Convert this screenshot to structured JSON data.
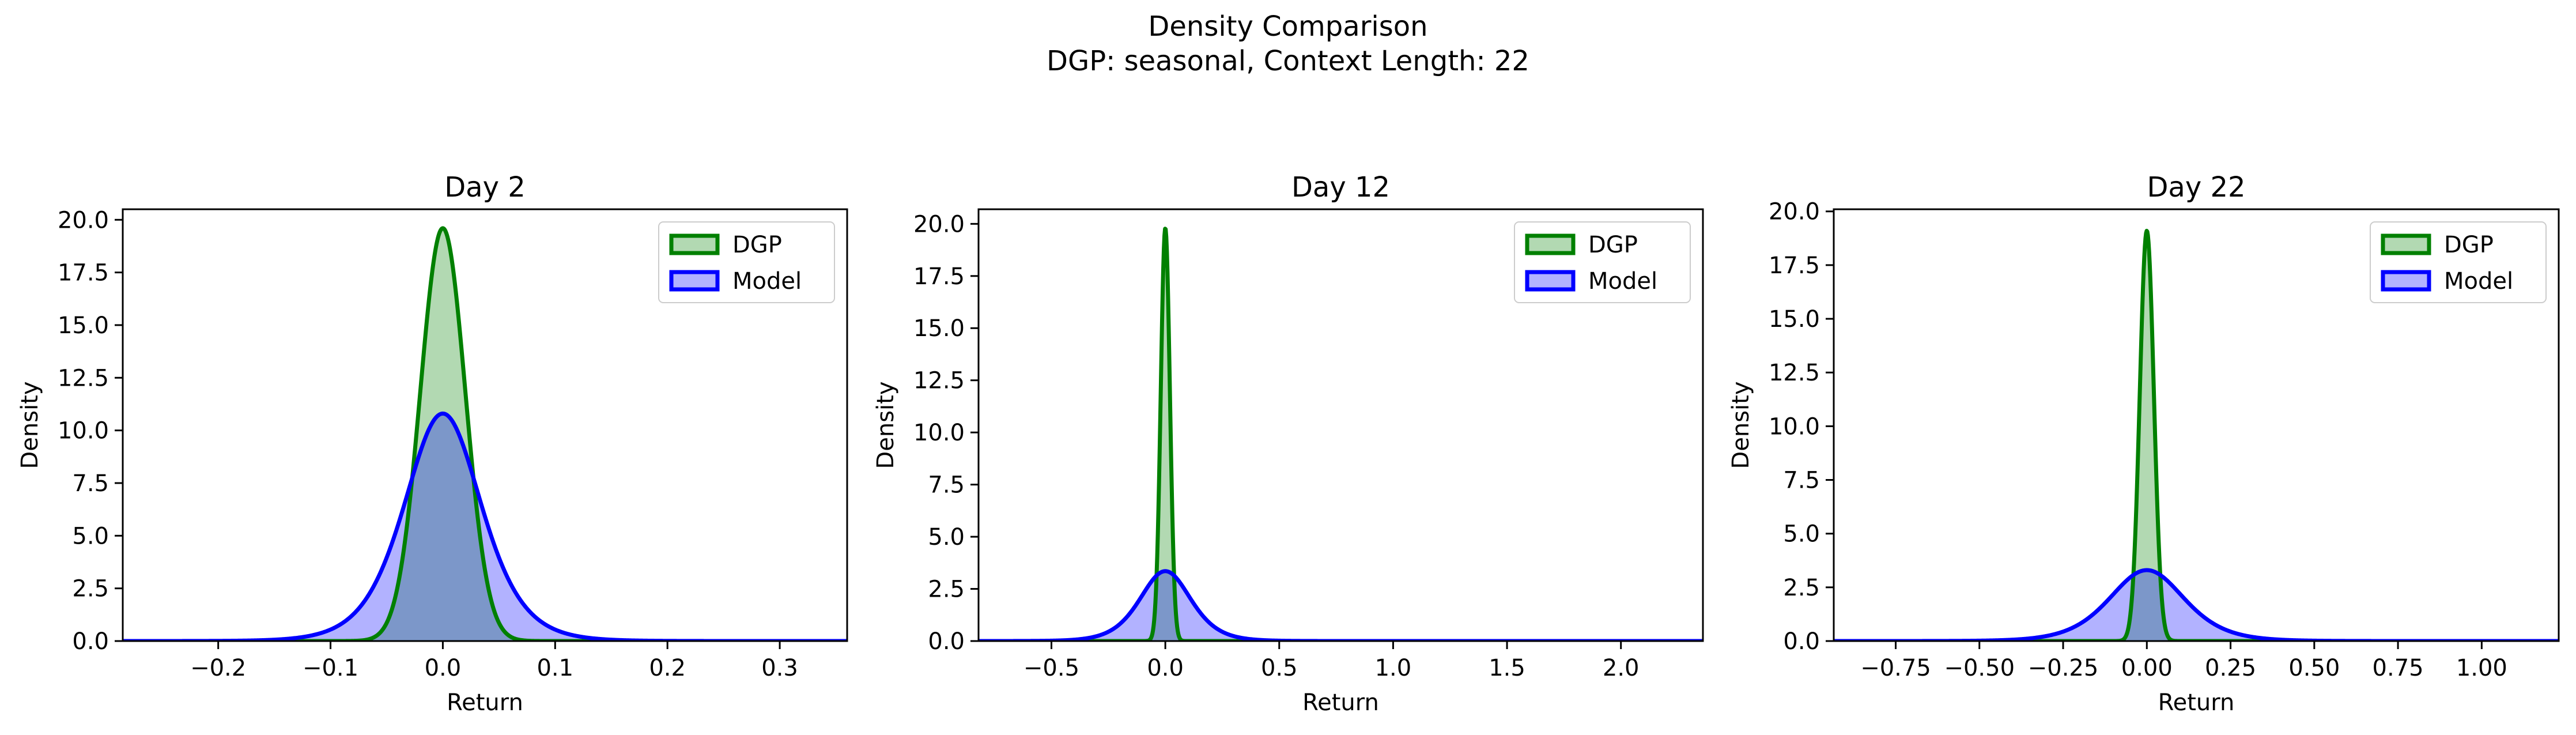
{
  "figure": {
    "title_line1": "Density Comparison",
    "title_line2": "DGP: seasonal, Context Length: 22"
  },
  "colors": {
    "dgp": "#008000",
    "model": "#0000ff",
    "background": "#ffffff",
    "axes": "#000000"
  },
  "chart_data": [
    {
      "type": "area",
      "title": "Day 2",
      "xlabel": "Return",
      "ylabel": "Density",
      "xlim": [
        -0.285,
        0.36
      ],
      "ylim": [
        0,
        20.5
      ],
      "xticks": [
        -0.2,
        -0.1,
        0.0,
        0.1,
        0.2,
        0.3
      ],
      "xtick_labels": [
        "−0.2",
        "−0.1",
        "0.0",
        "0.1",
        "0.2",
        "0.3"
      ],
      "yticks": [
        0,
        2.5,
        5,
        7.5,
        10,
        12.5,
        15,
        17.5,
        20
      ],
      "ytick_labels": [
        "0.0",
        "2.5",
        "5.0",
        "7.5",
        "10.0",
        "12.5",
        "15.0",
        "17.5",
        "20.0"
      ],
      "legend_position": "upper right",
      "series": [
        {
          "name": "DGP",
          "shape": "normal",
          "mean": 0.0,
          "sd": 0.02,
          "peak": 19.6
        },
        {
          "name": "Model",
          "shape": "logistic",
          "mean": 0.0,
          "scale": 0.023,
          "peak": 10.8
        }
      ]
    },
    {
      "type": "area",
      "title": "Day 12",
      "xlabel": "Return",
      "ylabel": "Density",
      "xlim": [
        -0.82,
        2.36
      ],
      "ylim": [
        0,
        20.7
      ],
      "xticks": [
        -0.5,
        0.0,
        0.5,
        1.0,
        1.5,
        2.0
      ],
      "xtick_labels": [
        "−0.5",
        "0.0",
        "0.5",
        "1.0",
        "1.5",
        "2.0"
      ],
      "yticks": [
        0,
        2.5,
        5,
        7.5,
        10,
        12.5,
        15,
        17.5,
        20
      ],
      "ytick_labels": [
        "0.0",
        "2.5",
        "5.0",
        "7.5",
        "10.0",
        "12.5",
        "15.0",
        "17.5",
        "20.0"
      ],
      "legend_position": "upper right",
      "series": [
        {
          "name": "DGP",
          "shape": "normal",
          "mean": 0.0,
          "sd": 0.02,
          "peak": 19.8
        },
        {
          "name": "Model",
          "shape": "logistic",
          "mean": 0.0,
          "scale": 0.075,
          "peak": 3.35
        }
      ]
    },
    {
      "type": "area",
      "title": "Day 22",
      "xlabel": "Return",
      "ylabel": "Density",
      "xlim": [
        -0.935,
        1.23
      ],
      "ylim": [
        0,
        20.1
      ],
      "xticks": [
        -0.75,
        -0.5,
        -0.25,
        0.0,
        0.25,
        0.5,
        0.75,
        1.0
      ],
      "xtick_labels": [
        "−0.75",
        "−0.50",
        "−0.25",
        "0.00",
        "0.25",
        "0.50",
        "0.75",
        "1.00"
      ],
      "yticks": [
        0,
        2.5,
        5,
        7.5,
        10,
        12.5,
        15,
        17.5,
        20
      ],
      "ytick_labels": [
        "0.0",
        "2.5",
        "5.0",
        "7.5",
        "10.0",
        "12.5",
        "15.0",
        "17.5",
        "20.0"
      ],
      "legend_position": "upper right",
      "series": [
        {
          "name": "DGP",
          "shape": "normal",
          "mean": 0.0,
          "sd": 0.021,
          "peak": 19.1
        },
        {
          "name": "Model",
          "shape": "logistic",
          "mean": 0.0,
          "scale": 0.075,
          "peak": 3.3
        }
      ]
    }
  ]
}
